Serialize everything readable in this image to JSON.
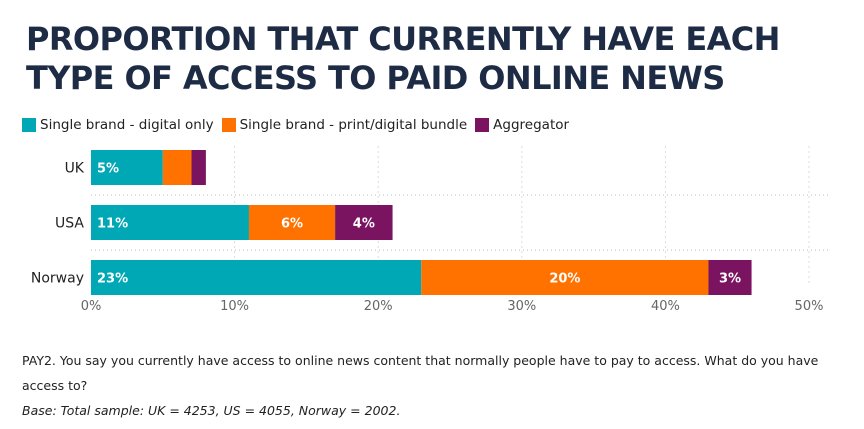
{
  "title_lines": [
    "PROPORTION THAT CURRENTLY HAVE EACH",
    "TYPE OF ACCESS TO PAID ONLINE NEWS"
  ],
  "colors": {
    "digital_only": "#00a7b5",
    "bundle": "#ff7200",
    "aggregator": "#7b1460",
    "title": "#1d2b45"
  },
  "chart_data": {
    "type": "bar",
    "orientation": "horizontal",
    "stacked": true,
    "title": "PROPORTION THAT CURRENTLY HAVE EACH TYPE OF ACCESS TO PAID ONLINE NEWS",
    "categories": [
      "UK",
      "USA",
      "Norway"
    ],
    "series": [
      {
        "name": "Single brand - digital only",
        "values": [
          5,
          11,
          23
        ],
        "labels": [
          "5%",
          "11%",
          "23%"
        ]
      },
      {
        "name": "Single brand - print/digital bundle",
        "values": [
          2,
          6,
          20
        ],
        "labels": [
          "",
          "6%",
          "20%"
        ]
      },
      {
        "name": "Aggregator",
        "values": [
          1,
          4,
          3
        ],
        "labels": [
          "",
          "4%",
          "3%"
        ]
      }
    ],
    "xlim": [
      0,
      50
    ],
    "xticks": [
      0,
      10,
      20,
      30,
      40,
      50
    ],
    "xtick_labels": [
      "0%",
      "10%",
      "20%",
      "30%",
      "40%",
      "50%"
    ],
    "grid": true,
    "legend_position": "top-left",
    "xlabel": "",
    "ylabel": ""
  },
  "footnote": {
    "question": "PAY2. You say you currently have access to online news content that normally people have to pay to access. What do you have access to?",
    "base": "Base: Total sample: UK = 4253, US = 4055, Norway = 2002."
  }
}
